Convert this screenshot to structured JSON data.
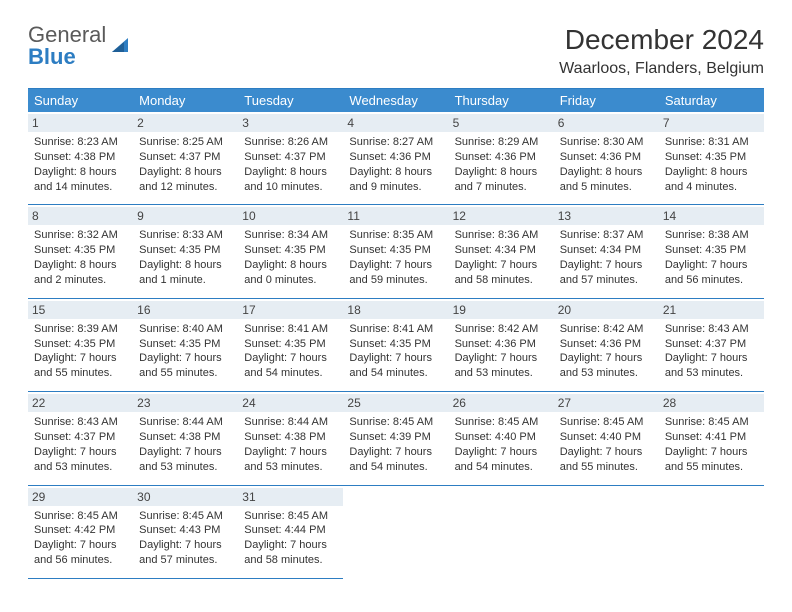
{
  "brand": {
    "line1": "General",
    "line2": "Blue"
  },
  "title": "December 2024",
  "location": "Waarloos, Flanders, Belgium",
  "colors": {
    "header_bg": "#3b8bce",
    "accent_border": "#2d7dc2",
    "daynum_bg": "#e6edf3",
    "text": "#333333",
    "logo_gray": "#5a5a5a"
  },
  "day_headers": [
    "Sunday",
    "Monday",
    "Tuesday",
    "Wednesday",
    "Thursday",
    "Friday",
    "Saturday"
  ],
  "days": [
    {
      "n": 1,
      "sr": "8:23 AM",
      "ss": "4:38 PM",
      "dh": 8,
      "dm": 14
    },
    {
      "n": 2,
      "sr": "8:25 AM",
      "ss": "4:37 PM",
      "dh": 8,
      "dm": 12
    },
    {
      "n": 3,
      "sr": "8:26 AM",
      "ss": "4:37 PM",
      "dh": 8,
      "dm": 10
    },
    {
      "n": 4,
      "sr": "8:27 AM",
      "ss": "4:36 PM",
      "dh": 8,
      "dm": 9
    },
    {
      "n": 5,
      "sr": "8:29 AM",
      "ss": "4:36 PM",
      "dh": 8,
      "dm": 7
    },
    {
      "n": 6,
      "sr": "8:30 AM",
      "ss": "4:36 PM",
      "dh": 8,
      "dm": 5
    },
    {
      "n": 7,
      "sr": "8:31 AM",
      "ss": "4:35 PM",
      "dh": 8,
      "dm": 4
    },
    {
      "n": 8,
      "sr": "8:32 AM",
      "ss": "4:35 PM",
      "dh": 8,
      "dm": 2
    },
    {
      "n": 9,
      "sr": "8:33 AM",
      "ss": "4:35 PM",
      "dh": 8,
      "dm": 1
    },
    {
      "n": 10,
      "sr": "8:34 AM",
      "ss": "4:35 PM",
      "dh": 8,
      "dm": 0
    },
    {
      "n": 11,
      "sr": "8:35 AM",
      "ss": "4:35 PM",
      "dh": 7,
      "dm": 59
    },
    {
      "n": 12,
      "sr": "8:36 AM",
      "ss": "4:34 PM",
      "dh": 7,
      "dm": 58
    },
    {
      "n": 13,
      "sr": "8:37 AM",
      "ss": "4:34 PM",
      "dh": 7,
      "dm": 57
    },
    {
      "n": 14,
      "sr": "8:38 AM",
      "ss": "4:35 PM",
      "dh": 7,
      "dm": 56
    },
    {
      "n": 15,
      "sr": "8:39 AM",
      "ss": "4:35 PM",
      "dh": 7,
      "dm": 55
    },
    {
      "n": 16,
      "sr": "8:40 AM",
      "ss": "4:35 PM",
      "dh": 7,
      "dm": 55
    },
    {
      "n": 17,
      "sr": "8:41 AM",
      "ss": "4:35 PM",
      "dh": 7,
      "dm": 54
    },
    {
      "n": 18,
      "sr": "8:41 AM",
      "ss": "4:35 PM",
      "dh": 7,
      "dm": 54
    },
    {
      "n": 19,
      "sr": "8:42 AM",
      "ss": "4:36 PM",
      "dh": 7,
      "dm": 53
    },
    {
      "n": 20,
      "sr": "8:42 AM",
      "ss": "4:36 PM",
      "dh": 7,
      "dm": 53
    },
    {
      "n": 21,
      "sr": "8:43 AM",
      "ss": "4:37 PM",
      "dh": 7,
      "dm": 53
    },
    {
      "n": 22,
      "sr": "8:43 AM",
      "ss": "4:37 PM",
      "dh": 7,
      "dm": 53
    },
    {
      "n": 23,
      "sr": "8:44 AM",
      "ss": "4:38 PM",
      "dh": 7,
      "dm": 53
    },
    {
      "n": 24,
      "sr": "8:44 AM",
      "ss": "4:38 PM",
      "dh": 7,
      "dm": 53
    },
    {
      "n": 25,
      "sr": "8:45 AM",
      "ss": "4:39 PM",
      "dh": 7,
      "dm": 54
    },
    {
      "n": 26,
      "sr": "8:45 AM",
      "ss": "4:40 PM",
      "dh": 7,
      "dm": 54
    },
    {
      "n": 27,
      "sr": "8:45 AM",
      "ss": "4:40 PM",
      "dh": 7,
      "dm": 55
    },
    {
      "n": 28,
      "sr": "8:45 AM",
      "ss": "4:41 PM",
      "dh": 7,
      "dm": 55
    },
    {
      "n": 29,
      "sr": "8:45 AM",
      "ss": "4:42 PM",
      "dh": 7,
      "dm": 56
    },
    {
      "n": 30,
      "sr": "8:45 AM",
      "ss": "4:43 PM",
      "dh": 7,
      "dm": 57
    },
    {
      "n": 31,
      "sr": "8:45 AM",
      "ss": "4:44 PM",
      "dh": 7,
      "dm": 58
    }
  ],
  "labels": {
    "sunrise": "Sunrise:",
    "sunset": "Sunset:",
    "daylight_prefix": "Daylight:",
    "hours_word": "hours",
    "and": "and",
    "minute_singular": "minute.",
    "minute_plural": "minutes."
  }
}
